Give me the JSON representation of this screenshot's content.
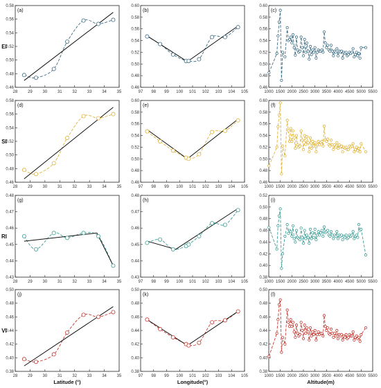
{
  "colors": {
    "EI": "#3f6f86",
    "SI": "#e0b43a",
    "RI": "#3f9f97",
    "VI": "#c43a32",
    "fit": "#111111"
  },
  "chart_data": [
    {
      "panel": "(a)",
      "type": "line",
      "row": "EI",
      "col": 0,
      "ylabel": "EI",
      "xlabel": "",
      "xlim": [
        28,
        35
      ],
      "ylim": [
        0.46,
        0.58
      ],
      "xticks": [
        28,
        29,
        30,
        31,
        32,
        33,
        34,
        35
      ],
      "yticks": [
        0.46,
        0.48,
        0.5,
        0.52,
        0.54,
        0.56,
        0.58
      ],
      "x": [
        28.6,
        29.4,
        30.6,
        31.5,
        32.6,
        33.6,
        34.6
      ],
      "y": [
        0.478,
        0.474,
        0.487,
        0.527,
        0.558,
        0.553,
        0.559
      ],
      "fit": [
        [
          28.6,
          0.47
        ],
        [
          34.6,
          0.57
        ]
      ]
    },
    {
      "panel": "(b)",
      "type": "line",
      "row": "EI",
      "col": 1,
      "ylabel": "",
      "xlabel": "",
      "xlim": [
        97,
        105
      ],
      "ylim": [
        0.46,
        0.6
      ],
      "xticks": [
        97,
        98,
        99,
        100,
        101,
        102,
        103,
        104,
        105
      ],
      "yticks": [
        0.46,
        0.48,
        0.5,
        0.52,
        0.54,
        0.56,
        0.58,
        0.6
      ],
      "x": [
        97.5,
        98.5,
        99.5,
        100.5,
        100.7,
        101.5,
        102.5,
        103.5,
        104.5
      ],
      "y": [
        0.547,
        0.534,
        0.516,
        0.505,
        0.505,
        0.508,
        0.546,
        0.546,
        0.563
      ],
      "fit": [
        [
          97.5,
          0.548
        ],
        [
          100.6,
          0.504
        ],
        [
          104.5,
          0.565
        ]
      ]
    },
    {
      "panel": "(c)",
      "type": "scatter",
      "row": "EI",
      "col": 2,
      "ylabel": "",
      "xlabel": "",
      "xlim": [
        1000,
        5500
      ],
      "ylim": [
        0.46,
        0.6
      ],
      "xticks": [
        1000,
        1500,
        2000,
        2500,
        3000,
        3500,
        4000,
        4500,
        5000,
        5500
      ],
      "yticks": [
        0.46,
        0.48,
        0.5,
        0.52,
        0.54,
        0.56,
        0.58,
        0.6
      ],
      "x": [
        1010,
        1350,
        1400,
        1450,
        1500,
        1550,
        1600,
        1700,
        1800,
        1850,
        1900,
        1950,
        2000,
        2050,
        2100,
        2150,
        2200,
        2250,
        2300,
        2350,
        2400,
        2450,
        2500,
        2550,
        2600,
        2650,
        2700,
        2750,
        2800,
        2850,
        2900,
        2950,
        3000,
        3050,
        3100,
        3150,
        3200,
        3250,
        3300,
        3350,
        3400,
        3450,
        3500,
        3550,
        3600,
        3650,
        3700,
        3750,
        3800,
        3850,
        3900,
        3950,
        4000,
        4050,
        4100,
        4150,
        4200,
        4250,
        4300,
        4350,
        4400,
        4450,
        4500,
        4550,
        4600,
        4650,
        4700,
        4750,
        4800,
        4850,
        4900,
        4950,
        5000,
        5200
      ],
      "y": [
        0.485,
        0.518,
        0.548,
        0.572,
        0.592,
        0.472,
        0.52,
        0.512,
        0.562,
        0.54,
        0.542,
        0.546,
        0.536,
        0.55,
        0.528,
        0.515,
        0.546,
        0.524,
        0.52,
        0.522,
        0.546,
        0.528,
        0.514,
        0.542,
        0.52,
        0.536,
        0.522,
        0.508,
        0.53,
        0.516,
        0.524,
        0.52,
        0.528,
        0.51,
        0.52,
        0.524,
        0.522,
        0.522,
        0.524,
        0.52,
        0.555,
        0.536,
        0.528,
        0.532,
        0.524,
        0.522,
        0.532,
        0.522,
        0.514,
        0.522,
        0.52,
        0.526,
        0.514,
        0.522,
        0.52,
        0.522,
        0.51,
        0.52,
        0.518,
        0.52,
        0.514,
        0.516,
        0.52,
        0.518,
        0.52,
        0.526,
        0.512,
        0.516,
        0.52,
        0.514,
        0.518,
        0.51,
        0.528,
        0.528
      ]
    },
    {
      "panel": "(d)",
      "type": "line",
      "row": "SI",
      "col": 0,
      "ylabel": "SI",
      "xlabel": "",
      "xlim": [
        28,
        35
      ],
      "ylim": [
        0.46,
        0.58
      ],
      "xticks": [
        28,
        29,
        30,
        31,
        32,
        33,
        34,
        35
      ],
      "yticks": [
        0.46,
        0.48,
        0.5,
        0.52,
        0.54,
        0.56,
        0.58
      ],
      "x": [
        28.6,
        29.4,
        30.6,
        31.5,
        32.6,
        33.6,
        34.6
      ],
      "y": [
        0.478,
        0.472,
        0.488,
        0.525,
        0.557,
        0.554,
        0.56
      ],
      "fit": [
        [
          28.6,
          0.465
        ],
        [
          34.6,
          0.57
        ]
      ]
    },
    {
      "panel": "(e)",
      "type": "line",
      "row": "SI",
      "col": 1,
      "ylabel": "",
      "xlabel": "",
      "xlim": [
        97,
        105
      ],
      "ylim": [
        0.46,
        0.6
      ],
      "xticks": [
        97,
        98,
        99,
        100,
        101,
        102,
        103,
        104,
        105
      ],
      "yticks": [
        0.46,
        0.48,
        0.5,
        0.52,
        0.54,
        0.56,
        0.58,
        0.6
      ],
      "x": [
        97.5,
        98.5,
        99.5,
        100.5,
        100.7,
        101.5,
        102.5,
        103.5,
        104.5
      ],
      "y": [
        0.547,
        0.53,
        0.514,
        0.502,
        0.5,
        0.508,
        0.546,
        0.548,
        0.566
      ],
      "fit": [
        [
          97.5,
          0.55
        ],
        [
          100.6,
          0.5
        ],
        [
          104.5,
          0.568
        ]
      ]
    },
    {
      "panel": "(f)",
      "type": "scatter",
      "row": "SI",
      "col": 2,
      "ylabel": "",
      "xlabel": "",
      "xlim": [
        1000,
        5500
      ],
      "ylim": [
        0.46,
        0.6
      ],
      "xticks": [
        1000,
        1500,
        2000,
        2500,
        3000,
        3500,
        4000,
        4500,
        5000,
        5500
      ],
      "yticks": [
        0.46,
        0.48,
        0.5,
        0.52,
        0.54,
        0.56,
        0.58,
        0.6
      ],
      "x": [
        1010,
        1350,
        1400,
        1450,
        1500,
        1550,
        1600,
        1700,
        1800,
        1850,
        1900,
        1950,
        2000,
        2050,
        2100,
        2150,
        2200,
        2250,
        2300,
        2350,
        2400,
        2450,
        2500,
        2550,
        2600,
        2650,
        2700,
        2750,
        2800,
        2850,
        2900,
        2950,
        3000,
        3050,
        3100,
        3150,
        3200,
        3250,
        3300,
        3350,
        3400,
        3450,
        3500,
        3550,
        3600,
        3650,
        3700,
        3750,
        3800,
        3850,
        3900,
        3950,
        4000,
        4050,
        4100,
        4150,
        4200,
        4250,
        4300,
        4350,
        4400,
        4450,
        4500,
        4550,
        4600,
        4650,
        4700,
        4750,
        4800,
        4850,
        4900,
        4950,
        5000,
        5200
      ],
      "y": [
        0.488,
        0.52,
        0.555,
        0.575,
        0.596,
        0.474,
        0.522,
        0.505,
        0.566,
        0.548,
        0.53,
        0.552,
        0.53,
        0.548,
        0.536,
        0.518,
        0.54,
        0.524,
        0.52,
        0.522,
        0.548,
        0.532,
        0.516,
        0.54,
        0.525,
        0.538,
        0.528,
        0.512,
        0.536,
        0.518,
        0.53,
        0.522,
        0.528,
        0.512,
        0.524,
        0.53,
        0.524,
        0.528,
        0.53,
        0.522,
        0.556,
        0.532,
        0.53,
        0.534,
        0.524,
        0.522,
        0.532,
        0.524,
        0.516,
        0.524,
        0.52,
        0.528,
        0.518,
        0.524,
        0.52,
        0.522,
        0.512,
        0.52,
        0.518,
        0.52,
        0.516,
        0.516,
        0.522,
        0.52,
        0.522,
        0.526,
        0.512,
        0.516,
        0.52,
        0.514,
        0.518,
        0.512,
        0.526,
        0.512
      ]
    },
    {
      "panel": "(g)",
      "type": "line",
      "row": "RI",
      "col": 0,
      "ylabel": "RI",
      "xlabel": "",
      "xlim": [
        28,
        35
      ],
      "ylim": [
        0.43,
        0.48
      ],
      "xticks": [
        28,
        29,
        30,
        31,
        32,
        33,
        34,
        35
      ],
      "yticks": [
        0.43,
        0.44,
        0.45,
        0.46,
        0.47,
        0.48
      ],
      "x": [
        28.6,
        29.4,
        30.6,
        31.5,
        32.6,
        33.6,
        34.6
      ],
      "y": [
        0.455,
        0.447,
        0.457,
        0.454,
        0.457,
        0.455,
        0.437
      ],
      "fit": [
        [
          28.6,
          0.452
        ],
        [
          33.5,
          0.457
        ],
        [
          34.6,
          0.437
        ]
      ]
    },
    {
      "panel": "(h)",
      "type": "line",
      "row": "RI",
      "col": 1,
      "ylabel": "",
      "xlabel": "",
      "xlim": [
        97,
        105
      ],
      "ylim": [
        0.43,
        0.48
      ],
      "xticks": [
        97,
        98,
        99,
        100,
        101,
        102,
        103,
        104,
        105
      ],
      "yticks": [
        0.43,
        0.44,
        0.45,
        0.46,
        0.47,
        0.48
      ],
      "x": [
        97.5,
        98.5,
        99.5,
        100.5,
        100.7,
        101.5,
        102.5,
        103.5,
        104.5
      ],
      "y": [
        0.451,
        0.453,
        0.447,
        0.449,
        0.45,
        0.455,
        0.463,
        0.462,
        0.471
      ],
      "fit": [
        [
          97.5,
          0.452
        ],
        [
          99.7,
          0.447
        ],
        [
          104.5,
          0.472
        ]
      ]
    },
    {
      "panel": "(i)",
      "type": "scatter",
      "row": "RI",
      "col": 2,
      "ylabel": "",
      "xlabel": "",
      "xlim": [
        1000,
        5500
      ],
      "ylim": [
        0.38,
        0.52
      ],
      "xticks": [
        1000,
        1500,
        2000,
        2500,
        3000,
        3500,
        4000,
        4500,
        5000,
        5500
      ],
      "yticks": [
        0.38,
        0.4,
        0.42,
        0.44,
        0.46,
        0.48,
        0.5,
        0.52
      ],
      "x": [
        1010,
        1350,
        1400,
        1450,
        1500,
        1550,
        1600,
        1700,
        1800,
        1850,
        1900,
        1950,
        2000,
        2050,
        2100,
        2150,
        2200,
        2250,
        2300,
        2350,
        2400,
        2450,
        2500,
        2550,
        2600,
        2650,
        2700,
        2750,
        2800,
        2850,
        2900,
        2950,
        3000,
        3050,
        3100,
        3150,
        3200,
        3250,
        3300,
        3350,
        3400,
        3450,
        3500,
        3550,
        3600,
        3650,
        3700,
        3750,
        3800,
        3850,
        3900,
        3950,
        4000,
        4050,
        4100,
        4150,
        4200,
        4250,
        4300,
        4350,
        4400,
        4450,
        4500,
        4550,
        4600,
        4650,
        4700,
        4750,
        4800,
        4850,
        4900,
        4950,
        5000,
        5200
      ],
      "y": [
        0.465,
        0.428,
        0.468,
        0.485,
        0.497,
        0.395,
        0.42,
        0.45,
        0.47,
        0.455,
        0.46,
        0.458,
        0.45,
        0.468,
        0.446,
        0.44,
        0.46,
        0.448,
        0.446,
        0.444,
        0.464,
        0.448,
        0.438,
        0.46,
        0.446,
        0.452,
        0.448,
        0.438,
        0.462,
        0.446,
        0.456,
        0.448,
        0.462,
        0.444,
        0.452,
        0.458,
        0.452,
        0.456,
        0.46,
        0.45,
        0.466,
        0.456,
        0.458,
        0.46,
        0.452,
        0.45,
        0.458,
        0.452,
        0.446,
        0.452,
        0.45,
        0.458,
        0.446,
        0.452,
        0.45,
        0.452,
        0.444,
        0.45,
        0.448,
        0.452,
        0.446,
        0.448,
        0.452,
        0.45,
        0.452,
        0.458,
        0.446,
        0.45,
        0.452,
        0.448,
        0.47,
        0.46,
        0.462,
        0.418
      ]
    },
    {
      "panel": "(j)",
      "type": "line",
      "row": "VI",
      "col": 0,
      "ylabel": "VI",
      "xlabel": "Latitude (°)",
      "xlim": [
        28,
        35
      ],
      "ylim": [
        0.38,
        0.5
      ],
      "xticks": [
        28,
        29,
        30,
        31,
        32,
        33,
        34,
        35
      ],
      "yticks": [
        0.38,
        0.4,
        0.42,
        0.44,
        0.46,
        0.48,
        0.5
      ],
      "x": [
        28.6,
        29.4,
        30.6,
        31.5,
        32.6,
        33.6,
        34.6
      ],
      "y": [
        0.398,
        0.394,
        0.405,
        0.437,
        0.463,
        0.46,
        0.467
      ],
      "fit": [
        [
          28.6,
          0.388
        ],
        [
          34.6,
          0.475
        ]
      ]
    },
    {
      "panel": "(k)",
      "type": "line",
      "row": "VI",
      "col": 1,
      "ylabel": "",
      "xlabel": "Longitude(°)",
      "xlim": [
        97,
        105
      ],
      "ylim": [
        0.38,
        0.5
      ],
      "xticks": [
        97,
        98,
        99,
        100,
        101,
        102,
        103,
        104,
        105
      ],
      "yticks": [
        0.38,
        0.4,
        0.42,
        0.44,
        0.46,
        0.48,
        0.5
      ],
      "x": [
        97.5,
        98.5,
        99.5,
        100.5,
        100.7,
        101.5,
        102.5,
        103.5,
        104.5
      ],
      "y": [
        0.456,
        0.442,
        0.43,
        0.42,
        0.418,
        0.422,
        0.452,
        0.455,
        0.468
      ],
      "fit": [
        [
          97.5,
          0.456
        ],
        [
          100.6,
          0.418
        ],
        [
          104.5,
          0.468
        ]
      ]
    },
    {
      "panel": "(l)",
      "type": "scatter",
      "row": "VI",
      "col": 2,
      "ylabel": "",
      "xlabel": "Altitude(m)",
      "xlim": [
        1000,
        5500
      ],
      "ylim": [
        0.38,
        0.5
      ],
      "xticks": [
        1000,
        1500,
        2000,
        2500,
        3000,
        3500,
        4000,
        4500,
        5000,
        5500
      ],
      "yticks": [
        0.38,
        0.4,
        0.42,
        0.44,
        0.46,
        0.48,
        0.5
      ],
      "x": [
        1010,
        1350,
        1400,
        1450,
        1500,
        1550,
        1600,
        1700,
        1800,
        1850,
        1900,
        1950,
        2000,
        2050,
        2100,
        2150,
        2200,
        2250,
        2300,
        2350,
        2400,
        2450,
        2500,
        2550,
        2600,
        2650,
        2700,
        2750,
        2800,
        2850,
        2900,
        2950,
        3000,
        3050,
        3100,
        3150,
        3200,
        3250,
        3300,
        3350,
        3400,
        3450,
        3500,
        3550,
        3600,
        3650,
        3700,
        3750,
        3800,
        3850,
        3900,
        3950,
        4000,
        4050,
        4100,
        4150,
        4200,
        4250,
        4300,
        4350,
        4400,
        4450,
        4500,
        4550,
        4600,
        4650,
        4700,
        4750,
        4800,
        4850,
        4900,
        4950,
        5000,
        5200
      ],
      "y": [
        0.402,
        0.436,
        0.456,
        0.478,
        0.485,
        0.408,
        0.43,
        0.42,
        0.47,
        0.452,
        0.446,
        0.456,
        0.446,
        0.452,
        0.438,
        0.43,
        0.448,
        0.436,
        0.432,
        0.434,
        0.452,
        0.44,
        0.428,
        0.448,
        0.436,
        0.444,
        0.438,
        0.426,
        0.444,
        0.432,
        0.438,
        0.434,
        0.44,
        0.426,
        0.434,
        0.438,
        0.434,
        0.436,
        0.436,
        0.432,
        0.462,
        0.446,
        0.44,
        0.444,
        0.436,
        0.434,
        0.442,
        0.436,
        0.43,
        0.436,
        0.432,
        0.44,
        0.428,
        0.434,
        0.432,
        0.434,
        0.426,
        0.432,
        0.43,
        0.434,
        0.428,
        0.43,
        0.434,
        0.432,
        0.432,
        0.438,
        0.426,
        0.43,
        0.432,
        0.428,
        0.43,
        0.424,
        0.434,
        0.444
      ]
    }
  ]
}
